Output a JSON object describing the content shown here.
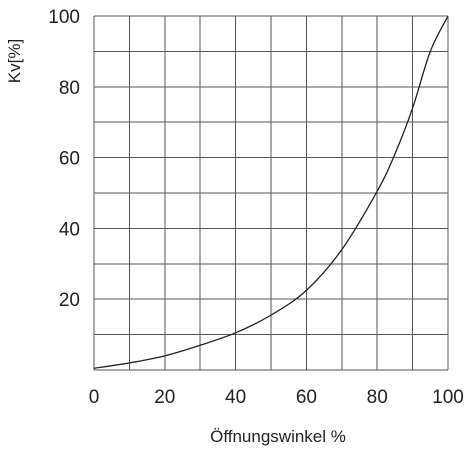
{
  "chart_data": {
    "type": "line",
    "title": "",
    "xlabel": "Öffnungswinkel %",
    "ylabel": "Kv[%]",
    "xlim": [
      0,
      100
    ],
    "ylim": [
      0,
      100
    ],
    "x_ticks": [
      0,
      20,
      40,
      60,
      80,
      100
    ],
    "y_ticks": [
      20,
      40,
      60,
      80,
      100
    ],
    "grid": true,
    "grid_step_x": 10,
    "grid_step_y": 10,
    "series": [
      {
        "x": [
          0,
          10,
          20,
          30,
          40,
          50,
          60,
          70,
          80,
          85,
          90,
          95,
          100
        ],
        "y": [
          0.5,
          2,
          4,
          7,
          10.5,
          15.5,
          22.5,
          34,
          50.5,
          61,
          74,
          90,
          100
        ]
      }
    ],
    "colors": {
      "line": "#222222",
      "grid": "#555555",
      "text": "#222222"
    }
  }
}
